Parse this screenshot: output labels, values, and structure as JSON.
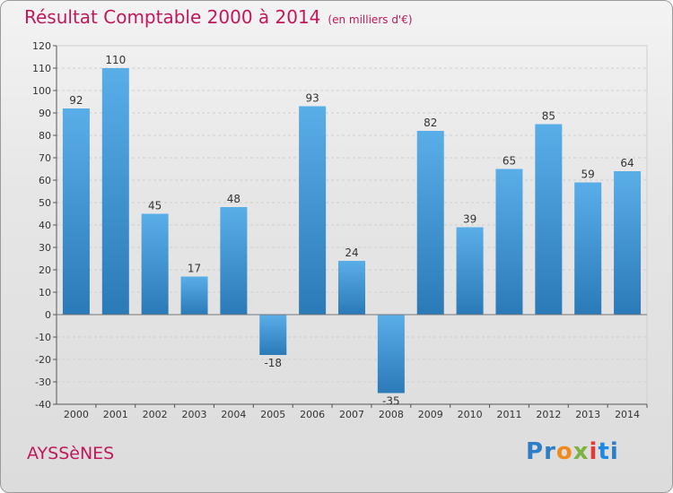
{
  "header": {
    "title": "Résultat Comptable 2000 à 2014",
    "unit": "(en milliers d'€)"
  },
  "footer": {
    "commune": "AYSSèNES",
    "logo_text": "Proxiti"
  },
  "colors": {
    "title": "#c2185b",
    "bar_top": "#5aaee8",
    "bar_bottom": "#2a7ab8"
  },
  "chart_data": {
    "type": "bar",
    "title": "Résultat Comptable 2000 à 2014",
    "subtitle": "(en milliers d'€)",
    "categories": [
      "2000",
      "2001",
      "2002",
      "2003",
      "2004",
      "2005",
      "2006",
      "2007",
      "2008",
      "2009",
      "2010",
      "2011",
      "2012",
      "2013",
      "2014"
    ],
    "values": [
      92,
      110,
      45,
      17,
      48,
      -18,
      93,
      24,
      -35,
      82,
      39,
      65,
      85,
      59,
      64
    ],
    "ylim": [
      -40,
      120
    ],
    "yticks": [
      -40,
      -30,
      -20,
      -10,
      0,
      10,
      20,
      30,
      40,
      50,
      60,
      70,
      80,
      90,
      100,
      110,
      120
    ],
    "grid": true,
    "legend": "none"
  }
}
